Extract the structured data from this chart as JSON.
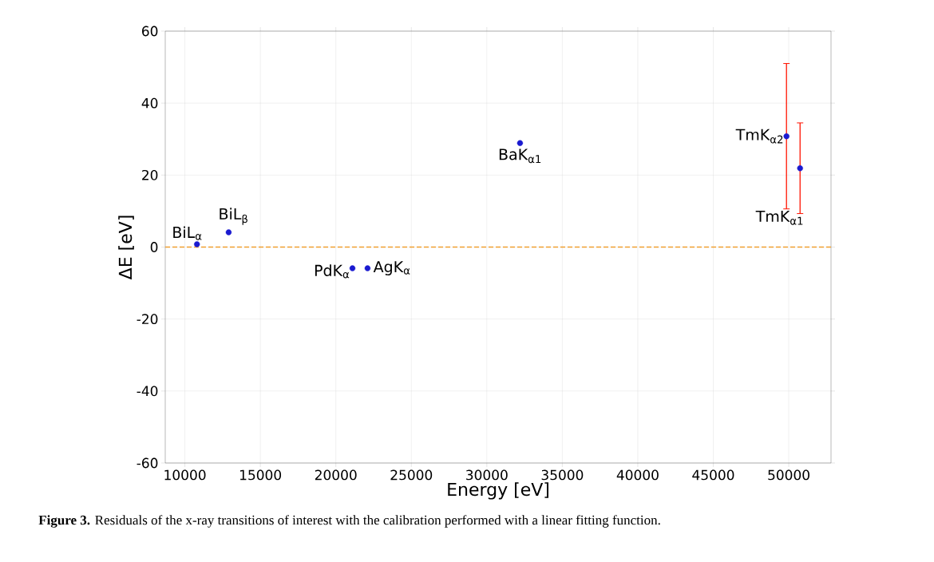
{
  "chart_data": {
    "type": "scatter",
    "xlabel": "Energy [eV]",
    "ylabel": "ΔE [eV]",
    "x": [
      10800,
      12900,
      21100,
      22100,
      32200,
      49850,
      50750
    ],
    "series": [
      {
        "color": "#1a1ad0",
        "values": [
          0.8,
          4.1,
          -5.9,
          -5.9,
          28.9,
          30.8,
          21.9
        ],
        "errors": [
          null,
          null,
          null,
          null,
          null,
          [
            10.6,
            51
          ],
          [
            9.3,
            34.5
          ]
        ]
      }
    ],
    "xlim": [
      8700,
      52800
    ],
    "ylim": [
      -60,
      60
    ],
    "xticks": [
      10000,
      15000,
      20000,
      25000,
      30000,
      35000,
      40000,
      45000,
      50000
    ],
    "yticks": [
      -60,
      -40,
      -20,
      0,
      20,
      40,
      60
    ],
    "grid": true,
    "marker": "circle",
    "ref_lines": [
      {
        "axis": "y",
        "value": 0,
        "color": "#f0a030",
        "line_style": "dashed"
      }
    ],
    "annotations": [
      {
        "text": "BiL$_{α}$",
        "x": 10800,
        "y": 0.8
      },
      {
        "text": "BiL$_{β}$",
        "x": 12900,
        "y": 4.1
      },
      {
        "text": "PdK$_{α}$",
        "x": 21100,
        "y": -5.9
      },
      {
        "text": "AgK$_{α}$",
        "x": 22100,
        "y": -5.9
      },
      {
        "text": "BaK$_{α1}$",
        "x": 32200,
        "y": 28.9
      },
      {
        "text": "TmK$_{α2}$",
        "x": 49850,
        "y": 30.8
      },
      {
        "text": "TmK$_{α1}$",
        "x": 50750,
        "y": 21.9
      },
      "**Figure 3.** Residuals of the x-ray transitions of interest with the calibration performed with a linear fitting function."
    ]
  }
}
